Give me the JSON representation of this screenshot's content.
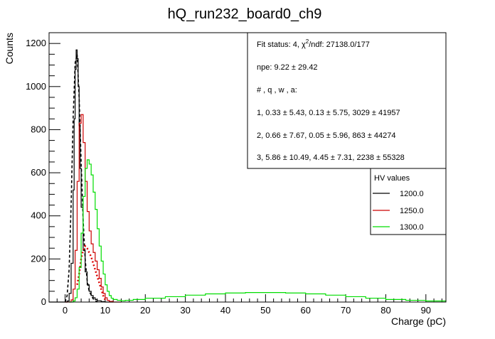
{
  "chart_data": {
    "type": "line",
    "title": "hQ_run232_board0_ch9",
    "xlabel": "Charge (pC)",
    "ylabel": "Counts",
    "xlim": [
      -4,
      95
    ],
    "ylim": [
      0,
      1250
    ],
    "x_ticks": [
      0,
      10,
      20,
      30,
      40,
      50,
      60,
      70,
      80,
      90
    ],
    "y_ticks": [
      0,
      200,
      400,
      600,
      800,
      1000,
      1200
    ],
    "grid": false,
    "fit_box": {
      "status_prefix": "Fit status: 4, ",
      "chi_symbol": "χ",
      "chi_exponent": "2",
      "chi_suffix": "/ndf: 27138.0/177",
      "npe": "npe: 9.22 ± 29.42",
      "header": "# , q , w , a:",
      "row1": "1, 0.33 ± 5.43, 0.13 ± 5.75, 3029 ± 41957",
      "row2": "2, 0.66 ± 7.67, 0.05 ± 5.96, 863 ± 44274",
      "row3": "3, 5.86 ± 10.49, 4.45 ± 7.31, 2238 ± 55328"
    },
    "legend": {
      "title": "HV values",
      "position": "right",
      "entries": [
        {
          "label": "1200.0",
          "color": "#000000"
        },
        {
          "label": "1250.0",
          "color": "#cc0000"
        },
        {
          "label": "1300.0",
          "color": "#00dd00"
        }
      ]
    },
    "series": [
      {
        "name": "1200.0",
        "color": "#000000",
        "style": "step",
        "x": [
          -4,
          0,
          0.5,
          1,
          1.5,
          2,
          2.25,
          2.5,
          2.75,
          3,
          3.25,
          3.5,
          3.75,
          4,
          4.5,
          5,
          5.5,
          6,
          6.5,
          7,
          7.5,
          8,
          9,
          10,
          12
        ],
        "y": [
          0,
          0,
          5,
          40,
          180,
          520,
          850,
          1080,
          1170,
          1130,
          1000,
          820,
          620,
          440,
          240,
          140,
          80,
          50,
          30,
          20,
          12,
          6,
          2,
          0,
          0
        ]
      },
      {
        "name": "1200.0 fit",
        "color": "#000000",
        "style": "dashed",
        "x": [
          0,
          0.5,
          1,
          1.5,
          2,
          2.5,
          3,
          3.5,
          4,
          4.5,
          5,
          5.5,
          6,
          7,
          8
        ],
        "y": [
          0,
          30,
          150,
          450,
          850,
          1110,
          1150,
          950,
          650,
          380,
          200,
          100,
          50,
          15,
          0
        ]
      },
      {
        "name": "1250.0",
        "color": "#cc0000",
        "style": "step",
        "x": [
          0,
          1,
          1.5,
          2,
          2.5,
          3,
          3.5,
          4,
          4.5,
          5,
          5.5,
          6,
          6.5,
          7,
          7.5,
          8,
          8.5,
          9,
          9.5,
          10,
          10.5,
          11,
          12,
          14
        ],
        "y": [
          0,
          0,
          10,
          60,
          240,
          560,
          830,
          870,
          740,
          560,
          420,
          330,
          270,
          230,
          190,
          150,
          110,
          70,
          40,
          20,
          8,
          3,
          0,
          0
        ]
      },
      {
        "name": "1250.0 fit",
        "color": "#dd0000",
        "style": "dotted",
        "x": [
          3,
          3.5,
          4,
          4.5,
          5,
          5.5,
          6,
          6.5,
          7,
          7.5,
          8,
          8.5,
          9,
          9.5,
          10
        ],
        "y": [
          80,
          130,
          200,
          240,
          260,
          250,
          230,
          210,
          180,
          150,
          120,
          90,
          60,
          30,
          10
        ]
      },
      {
        "name": "1300.0",
        "color": "#00dd00",
        "style": "step",
        "x": [
          1,
          2,
          2.5,
          3,
          3.5,
          4,
          4.5,
          5,
          5.5,
          6,
          6.5,
          7,
          7.5,
          8,
          8.5,
          9,
          9.5,
          10,
          10.5,
          11,
          11.5,
          12,
          13,
          14,
          15,
          17,
          20,
          25,
          30,
          35,
          40,
          45,
          50,
          55,
          60,
          65,
          70,
          75,
          80,
          85,
          90,
          95
        ],
        "y": [
          0,
          5,
          20,
          60,
          160,
          320,
          490,
          620,
          660,
          640,
          590,
          510,
          430,
          340,
          260,
          190,
          130,
          80,
          50,
          30,
          18,
          12,
          8,
          6,
          8,
          12,
          18,
          25,
          32,
          38,
          42,
          44,
          44,
          42,
          38,
          32,
          25,
          18,
          12,
          8,
          5,
          3
        ]
      }
    ]
  }
}
